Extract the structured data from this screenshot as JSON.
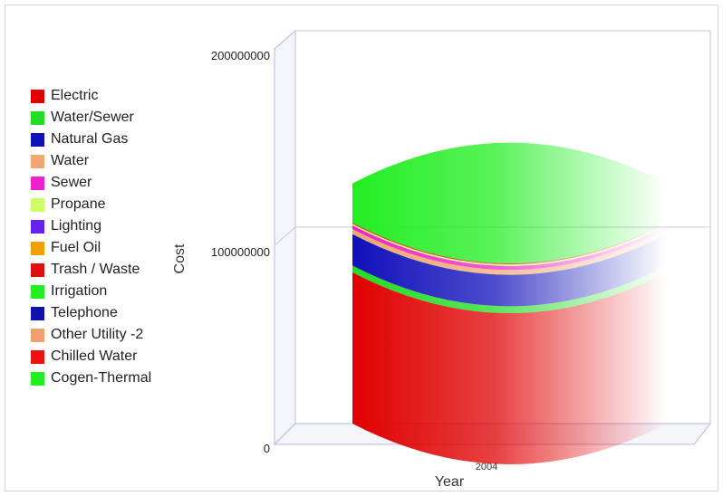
{
  "chart_data": {
    "type": "area",
    "title": "",
    "xlabel": "Year",
    "ylabel": "Cost",
    "ylim": [
      0,
      200000000
    ],
    "yticks": [
      "0",
      "100000000",
      "200000000"
    ],
    "categories": [
      "2004"
    ],
    "legend_position": "left",
    "grid": true,
    "series": [
      {
        "name": "Electric",
        "color": "#e00000",
        "values": [
          77000000
        ]
      },
      {
        "name": "Water/Sewer",
        "color": "#22dd22",
        "values": [
          3500000
        ]
      },
      {
        "name": "Natural Gas",
        "color": "#1010bb",
        "values": [
          16000000
        ]
      },
      {
        "name": "Water",
        "color": "#f0a870",
        "values": [
          2500000
        ]
      },
      {
        "name": "Sewer",
        "color": "#ee22cc",
        "values": [
          2000000
        ]
      },
      {
        "name": "Propane",
        "color": "#ccff66",
        "values": [
          800000
        ]
      },
      {
        "name": "Lighting",
        "color": "#6622ee",
        "values": [
          0
        ]
      },
      {
        "name": "Fuel Oil",
        "color": "#f0a000",
        "values": [
          0
        ]
      },
      {
        "name": "Trash / Waste",
        "color": "#e01010",
        "values": [
          500000
        ]
      },
      {
        "name": "Irrigation",
        "color": "#22ee22",
        "values": [
          0
        ]
      },
      {
        "name": "Telephone",
        "color": "#1010aa",
        "values": [
          0
        ]
      },
      {
        "name": "Other Utility -2",
        "color": "#f0a070",
        "values": [
          0
        ]
      },
      {
        "name": "Chilled Water",
        "color": "#ee1010",
        "values": [
          0
        ]
      },
      {
        "name": "Cogen-Thermal",
        "color": "#22ee22",
        "values": [
          20000000
        ]
      }
    ]
  }
}
